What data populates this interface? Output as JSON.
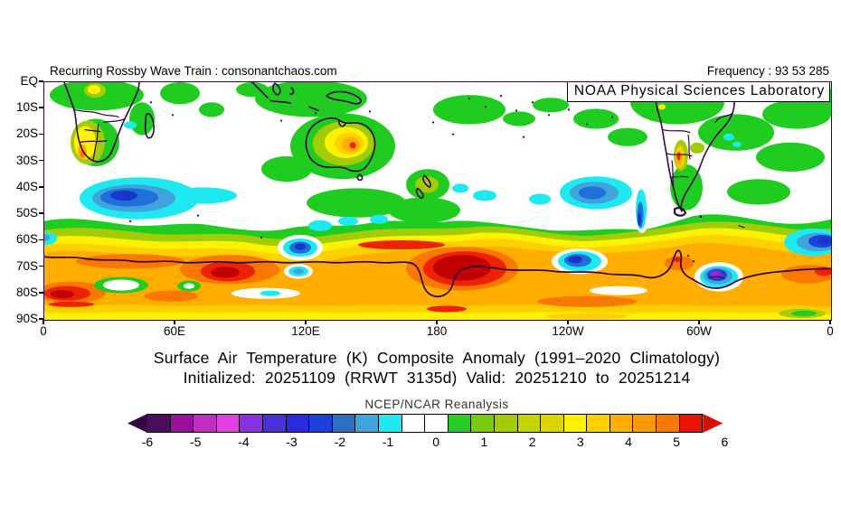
{
  "header": {
    "left": "Recurring Rossby Wave Train : consonantchaos.com",
    "right": "Frequency : 93 53 285"
  },
  "map": {
    "watermark": "NOAA Physical Sciences Laboratory",
    "y_axis_labels": [
      "EQ",
      "10S",
      "20S",
      "30S",
      "40S",
      "50S",
      "60S",
      "70S",
      "80S",
      "90S"
    ],
    "x_axis_labels": [
      "0",
      "60E",
      "120E",
      "180",
      "120W",
      "60W",
      "0"
    ],
    "anomaly_highlights": [
      {
        "location": "Indian Ocean 38-52S, 25-80E",
        "sign": "cold",
        "approx_peak_K": -3
      },
      {
        "location": "South of Australia 60-66S near 115E",
        "sign": "cold",
        "approx_peak_K": -3
      },
      {
        "location": "Southeast Pacific 65-72S near 110W",
        "sign": "cold",
        "approx_peak_K": -3
      },
      {
        "location": "Weddell Sea 75-80S near 50W",
        "sign": "cold",
        "approx_peak_K": -5
      },
      {
        "location": "South Atlantic 55-65S, 30W-0",
        "sign": "cold",
        "approx_peak_K": -3
      },
      {
        "location": "Ross Sea / Antarctic coast near 180",
        "sign": "warm",
        "approx_peak_K": 6
      },
      {
        "location": "Antarctic coast 60-90E",
        "sign": "warm",
        "approx_peak_K": 6
      },
      {
        "location": "Interior eastern Australia",
        "sign": "warm",
        "approx_peak_K": 4.5
      },
      {
        "location": "Central Andes near 30S",
        "sign": "warm",
        "approx_peak_K": 5
      },
      {
        "location": "Circumpolar band 60-90S",
        "sign": "warm",
        "approx_peak_K": 3
      }
    ]
  },
  "caption": {
    "title": "Surface Air Temperature (K) Composite Anomaly (1991–2020 Climatology)",
    "subtitle": "Initialized: 20251109 (RRWT 3135d) Valid: 20251210 to 20251214"
  },
  "colorbar": {
    "title": "NCEP/NCAR Reanalysis",
    "units": "K",
    "tick_labels": [
      "-6",
      "-5",
      "-4",
      "-3",
      "-2",
      "-1",
      "0",
      "1",
      "2",
      "3",
      "4",
      "5",
      "6"
    ],
    "cell_colors": [
      "#4A0E5C",
      "#99119B",
      "#C02EC0",
      "#E23EE2",
      "#8833DD",
      "#4A30D8",
      "#2B2BDC",
      "#1C41DA",
      "#2E6FC4",
      "#3FA3DC",
      "#1EE8F0",
      "#FFFFFF",
      "#FFFFFF",
      "#27CC27",
      "#77CC11",
      "#A3CC05",
      "#C3D400",
      "#DCD400",
      "#FFF200",
      "#FFD000",
      "#FFAE00",
      "#FF9A00",
      "#F97800",
      "#E81400"
    ],
    "left_arrow_color": "#35063F",
    "right_arrow_color": "#D90E00",
    "accent_colors": {
      "land_outline": "#330644",
      "frame": "#2B0636",
      "warm_core": "#C00000",
      "cold_core": "#1A35CC",
      "weddell_core": "#AA22CC"
    }
  }
}
